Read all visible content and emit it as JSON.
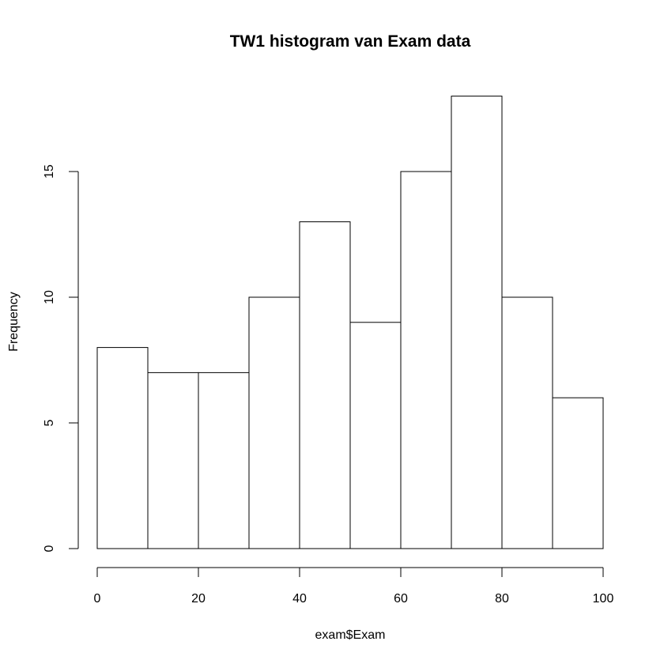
{
  "chart_data": {
    "type": "bar",
    "title": "TW1 histogram van Exam data",
    "xlabel": "exam$Exam",
    "ylabel": "Frequency",
    "bins": [
      {
        "from": 0,
        "to": 10,
        "count": 8
      },
      {
        "from": 10,
        "to": 20,
        "count": 7
      },
      {
        "from": 20,
        "to": 30,
        "count": 7
      },
      {
        "from": 30,
        "to": 40,
        "count": 10
      },
      {
        "from": 40,
        "to": 50,
        "count": 13
      },
      {
        "from": 50,
        "to": 60,
        "count": 9
      },
      {
        "from": 60,
        "to": 70,
        "count": 15
      },
      {
        "from": 70,
        "to": 80,
        "count": 18
      },
      {
        "from": 80,
        "to": 90,
        "count": 10
      },
      {
        "from": 90,
        "to": 100,
        "count": 6
      }
    ],
    "xlim": [
      0,
      100
    ],
    "ylim": [
      0,
      18
    ],
    "x_ticks": [
      0,
      20,
      40,
      60,
      80,
      100
    ],
    "y_ticks": [
      0,
      5,
      10,
      15
    ],
    "grid": false,
    "colors": {
      "fill": "#ffffff",
      "stroke": "#000000"
    }
  }
}
